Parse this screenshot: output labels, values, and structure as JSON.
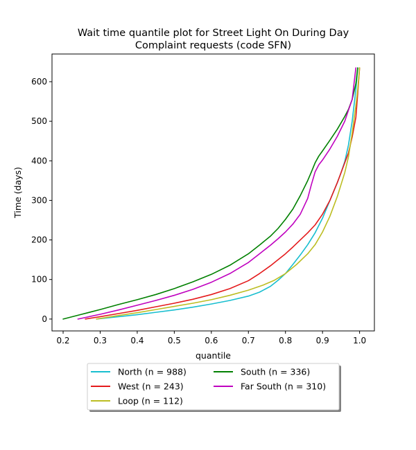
{
  "chart_data": {
    "type": "line",
    "title_line1": "Wait time quantile plot for Street Light On During Day",
    "title_line2": "Complaint  requests (code SFN)",
    "xlabel": "quantile",
    "ylabel": "Time (days)",
    "xlim": [
      0.17,
      1.04
    ],
    "ylim": [
      -30,
      670
    ],
    "xticks": [
      0.2,
      0.3,
      0.4,
      0.5,
      0.6,
      0.7,
      0.8,
      0.9,
      1.0
    ],
    "xtick_labels": [
      "0.2",
      "0.3",
      "0.4",
      "0.5",
      "0.6",
      "0.7",
      "0.8",
      "0.9",
      "1.0"
    ],
    "yticks": [
      0,
      100,
      200,
      300,
      400,
      500,
      600
    ],
    "ytick_labels": [
      "0",
      "100",
      "200",
      "300",
      "400",
      "500",
      "600"
    ],
    "grid": false,
    "legend_position": "below",
    "series": [
      {
        "name": "North (n = 988)",
        "color": "#17becf",
        "x": [
          0.29,
          0.35,
          0.4,
          0.45,
          0.5,
          0.55,
          0.6,
          0.65,
          0.7,
          0.73,
          0.76,
          0.78,
          0.8,
          0.82,
          0.84,
          0.86,
          0.88,
          0.9,
          0.92,
          0.94,
          0.95,
          0.96,
          0.97,
          0.98,
          0.99,
          0.995
        ],
        "y": [
          0,
          6,
          11,
          17,
          23,
          30,
          38,
          47,
          58,
          68,
          83,
          98,
          115,
          138,
          162,
          188,
          218,
          255,
          300,
          345,
          370,
          398,
          440,
          500,
          580,
          635
        ]
      },
      {
        "name": "West (n = 243)",
        "color": "#e41a1c",
        "x": [
          0.26,
          0.3,
          0.35,
          0.4,
          0.45,
          0.5,
          0.55,
          0.6,
          0.65,
          0.7,
          0.73,
          0.76,
          0.78,
          0.8,
          0.82,
          0.84,
          0.86,
          0.88,
          0.9,
          0.92,
          0.94,
          0.96,
          0.97,
          0.98,
          0.99,
          0.995,
          1.0
        ],
        "y": [
          0,
          6,
          14,
          22,
          31,
          40,
          50,
          62,
          77,
          97,
          115,
          135,
          150,
          165,
          182,
          200,
          218,
          238,
          265,
          300,
          345,
          395,
          420,
          460,
          510,
          570,
          635
        ]
      },
      {
        "name": "Loop (n = 112)",
        "color": "#bcbd22",
        "x": [
          0.29,
          0.35,
          0.4,
          0.45,
          0.5,
          0.55,
          0.6,
          0.65,
          0.7,
          0.74,
          0.77,
          0.8,
          0.83,
          0.86,
          0.88,
          0.9,
          0.92,
          0.94,
          0.95,
          0.96,
          0.97,
          0.98,
          0.99,
          0.995,
          1.0
        ],
        "y": [
          0,
          9,
          16,
          24,
          32,
          40,
          49,
          60,
          73,
          86,
          98,
          115,
          138,
          165,
          188,
          220,
          260,
          310,
          340,
          370,
          410,
          470,
          540,
          580,
          635
        ]
      },
      {
        "name": "South (n = 336)",
        "color": "#008000",
        "x": [
          0.2,
          0.25,
          0.3,
          0.35,
          0.4,
          0.45,
          0.5,
          0.55,
          0.6,
          0.65,
          0.7,
          0.73,
          0.76,
          0.78,
          0.8,
          0.82,
          0.84,
          0.86,
          0.87,
          0.88,
          0.89,
          0.9,
          0.92,
          0.94,
          0.96,
          0.97,
          0.98,
          0.99,
          0.995
        ],
        "y": [
          0,
          12,
          24,
          37,
          49,
          62,
          77,
          94,
          113,
          136,
          165,
          187,
          210,
          229,
          252,
          278,
          312,
          350,
          372,
          395,
          412,
          425,
          452,
          480,
          512,
          530,
          555,
          595,
          635
        ]
      },
      {
        "name": "Far South (n = 310)",
        "color": "#bf00bf",
        "x": [
          0.24,
          0.3,
          0.35,
          0.4,
          0.45,
          0.5,
          0.55,
          0.6,
          0.65,
          0.7,
          0.73,
          0.76,
          0.78,
          0.8,
          0.82,
          0.84,
          0.86,
          0.87,
          0.88,
          0.89,
          0.9,
          0.92,
          0.94,
          0.96,
          0.97,
          0.98,
          0.99
        ],
        "y": [
          0,
          12,
          23,
          35,
          47,
          60,
          75,
          93,
          115,
          143,
          165,
          187,
          203,
          220,
          240,
          265,
          305,
          340,
          372,
          390,
          402,
          430,
          462,
          500,
          528,
          555,
          635
        ]
      }
    ]
  }
}
